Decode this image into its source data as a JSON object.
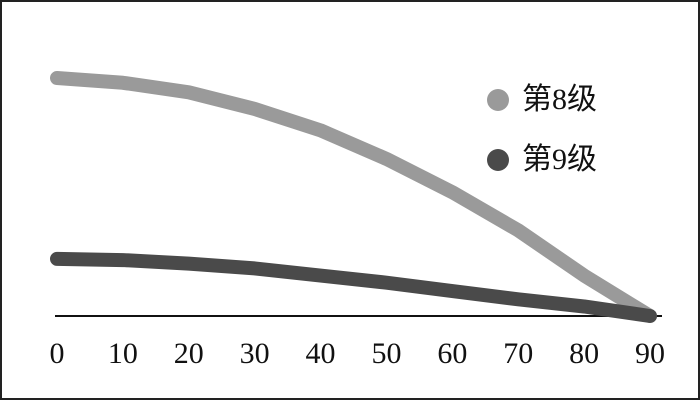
{
  "chart_data": {
    "type": "line",
    "x": [
      0,
      10,
      20,
      30,
      40,
      50,
      60,
      70,
      80,
      90
    ],
    "series": [
      {
        "name": "第8级",
        "color": "#9a9a9a",
        "values": [
          100,
          98,
          94,
          87,
          78,
          66,
          52,
          36,
          17,
          0
        ]
      },
      {
        "name": "第9级",
        "color": "#4a4a4a",
        "values": [
          24,
          23.5,
          22,
          20,
          17,
          14,
          10.5,
          7,
          4,
          0
        ]
      }
    ],
    "xlim": [
      0,
      90
    ],
    "xticks": [
      0,
      10,
      20,
      30,
      40,
      50,
      60,
      70,
      80,
      90
    ],
    "ylim": [
      0,
      100
    ],
    "legend": "upper right"
  }
}
